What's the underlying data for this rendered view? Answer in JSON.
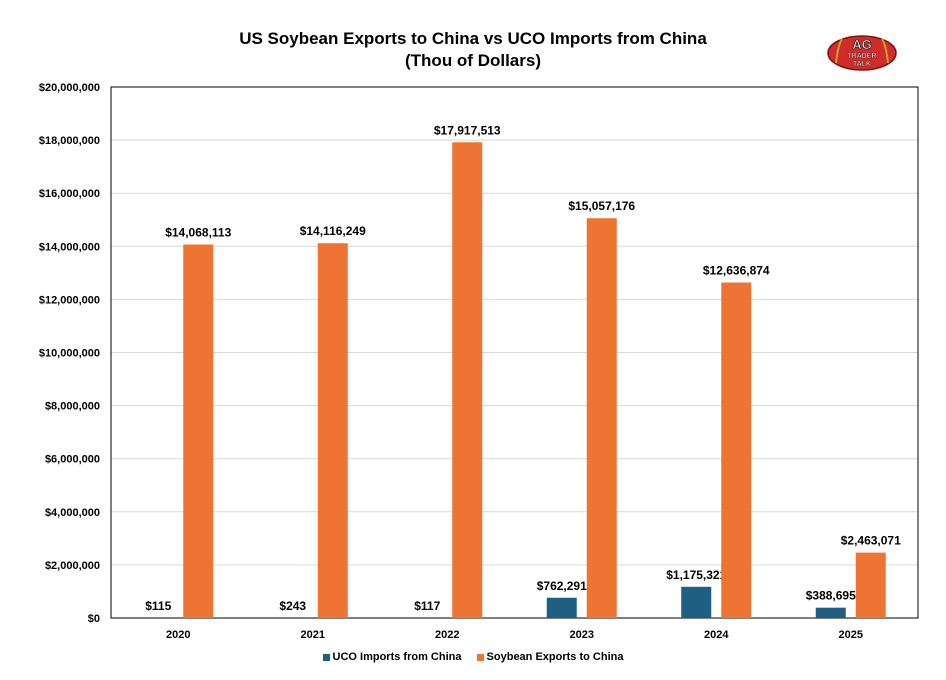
{
  "title": {
    "line1": "US Soybean Exports to China vs UCO Imports from China",
    "line2": "(Thou of Dollars)"
  },
  "logo": {
    "line1": "AG",
    "line2": "TRADER",
    "line3": "TALK"
  },
  "colors": {
    "uco": "#1f5f82",
    "soy": "#ed7433",
    "grid": "#d9d9d9",
    "logo_red": "#d22b2b"
  },
  "chart_data": {
    "type": "bar",
    "title": "US Soybean Exports to China vs UCO Imports from China (Thou of Dollars)",
    "categories": [
      "2020",
      "2021",
      "2022",
      "2023",
      "2024",
      "2025"
    ],
    "series": [
      {
        "name": "UCO Imports from China",
        "values": [
          115,
          243,
          117,
          762291,
          1175321,
          388695
        ],
        "labels": [
          "$115",
          "$243",
          "$117",
          "$762,291",
          "$1,175,321",
          "$388,695"
        ]
      },
      {
        "name": "Soybean Exports to China",
        "values": [
          14068113,
          14116249,
          17917513,
          15057176,
          12636874,
          2463071
        ],
        "labels": [
          "$14,068,113",
          "$14,116,249",
          "$17,917,513",
          "$15,057,176",
          "$12,636,874",
          "$2,463,071"
        ]
      }
    ],
    "ylim": [
      0,
      20000000
    ],
    "yticks": [
      0,
      2000000,
      4000000,
      6000000,
      8000000,
      10000000,
      12000000,
      14000000,
      16000000,
      18000000,
      20000000
    ],
    "ytick_labels": [
      "$0",
      "$2,000,000",
      "$4,000,000",
      "$6,000,000",
      "$8,000,000",
      "$10,000,000",
      "$12,000,000",
      "$14,000,000",
      "$16,000,000",
      "$18,000,000",
      "$20,000,000"
    ],
    "grid": true,
    "legend": "bottom"
  }
}
